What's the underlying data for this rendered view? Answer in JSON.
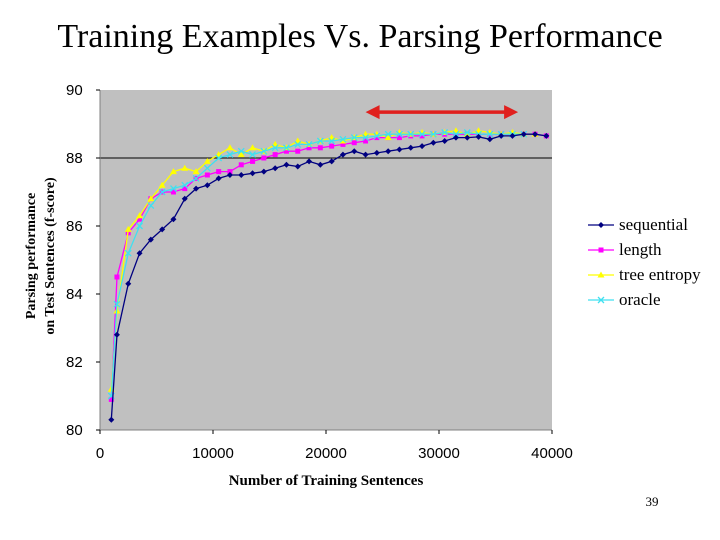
{
  "slide": {
    "title": "Training Examples Vs. Parsing Performance",
    "page_number": "39"
  },
  "colors": {
    "plot_background": "#c0c0c0",
    "gridline": "#000000",
    "arrow": "#e0201e"
  },
  "chart_data": {
    "type": "line",
    "title": "",
    "xlabel": "Number of Training Sentences",
    "ylabel_lines": [
      "Parsing performance",
      "on Test Sentences (f-score)"
    ],
    "xlim": [
      0,
      40000
    ],
    "ylim": [
      80,
      90
    ],
    "x_ticks": [
      "0",
      "10000",
      "20000",
      "30000",
      "40000"
    ],
    "y_ticks": [
      "80",
      "82",
      "84",
      "86",
      "88",
      "90"
    ],
    "gridlines_y": [
      88
    ],
    "legend_position": "right",
    "annotations": [
      {
        "type": "double-arrow",
        "x_start": 23500,
        "x_end": 37000,
        "y": 89.35
      }
    ],
    "series": [
      {
        "name": "sequential",
        "color": "#000080",
        "marker": "diamond",
        "x": [
          1000,
          1500,
          2500,
          3500,
          4500,
          5500,
          6500,
          7500,
          8500,
          9500,
          10500,
          11500,
          12500,
          13500,
          14500,
          15500,
          16500,
          17500,
          18500,
          19500,
          20500,
          21500,
          22500,
          23500,
          24500,
          25500,
          26500,
          27500,
          28500,
          29500,
          30500,
          31500,
          32500,
          33500,
          34500,
          35500,
          36500,
          37500,
          38500,
          39500
        ],
        "y": [
          80.3,
          82.8,
          84.3,
          85.2,
          85.6,
          85.9,
          86.2,
          86.8,
          87.1,
          87.2,
          87.4,
          87.5,
          87.5,
          87.55,
          87.6,
          87.7,
          87.8,
          87.75,
          87.9,
          87.8,
          87.9,
          88.1,
          88.2,
          88.1,
          88.15,
          88.2,
          88.25,
          88.3,
          88.35,
          88.45,
          88.5,
          88.6,
          88.6,
          88.62,
          88.55,
          88.65,
          88.65,
          88.7,
          88.7,
          88.65
        ]
      },
      {
        "name": "length",
        "color": "#ff00ff",
        "marker": "square",
        "x": [
          1000,
          1500,
          2500,
          3500,
          4500,
          5500,
          6500,
          7500,
          8500,
          9500,
          10500,
          11500,
          12500,
          13500,
          14500,
          15500,
          16500,
          17500,
          18500,
          19500,
          20500,
          21500,
          22500,
          23500,
          24500,
          25500,
          26500,
          27500,
          28500,
          29500,
          30500,
          31500,
          32500,
          33500,
          34500,
          35500,
          36500,
          37500,
          38500,
          39500
        ],
        "y": [
          80.9,
          84.5,
          85.8,
          86.2,
          86.8,
          87.0,
          87.0,
          87.1,
          87.4,
          87.5,
          87.6,
          87.6,
          87.8,
          87.9,
          88.0,
          88.1,
          88.2,
          88.2,
          88.3,
          88.3,
          88.35,
          88.4,
          88.45,
          88.5,
          88.6,
          88.6,
          88.6,
          88.65,
          88.65,
          88.7,
          88.7,
          88.7,
          88.7,
          88.7,
          88.7,
          88.7,
          88.7,
          88.7,
          88.7,
          88.65
        ]
      },
      {
        "name": "tree entropy",
        "color": "#ffff00",
        "marker": "triangle",
        "x": [
          1000,
          1500,
          2500,
          3500,
          4500,
          5500,
          6500,
          7500,
          8500,
          9500,
          10500,
          11500,
          12500,
          13500,
          14500,
          15500,
          16500,
          17500,
          18500,
          19500,
          20500,
          21500,
          22500,
          23500,
          24500,
          25500,
          26500,
          27500,
          28500,
          29500,
          30500,
          31500,
          32500,
          33500,
          34500,
          35500,
          36500,
          37500,
          38500
        ],
        "y": [
          81.2,
          83.5,
          85.9,
          86.3,
          86.8,
          87.2,
          87.6,
          87.7,
          87.6,
          87.9,
          88.1,
          88.3,
          88.1,
          88.3,
          88.2,
          88.4,
          88.3,
          88.5,
          88.4,
          88.5,
          88.6,
          88.5,
          88.6,
          88.7,
          88.7,
          88.6,
          88.75,
          88.7,
          88.75,
          88.7,
          88.75,
          88.8,
          88.7,
          88.8,
          88.75,
          88.7,
          88.75,
          88.7,
          88.7
        ]
      },
      {
        "name": "oracle",
        "color": "#40e0f0",
        "marker": "x",
        "x": [
          1000,
          1500,
          2500,
          3500,
          4500,
          5500,
          6500,
          7500,
          8500,
          9500,
          10500,
          11500,
          12500,
          13500,
          14500,
          15500,
          16500,
          17500,
          18500,
          19500,
          20500,
          21500,
          22500,
          23500,
          24500,
          25500,
          26500,
          27500,
          28500,
          29500,
          30500,
          31500,
          32500,
          33500,
          34500,
          35500,
          36500,
          37500
        ],
        "y": [
          81.0,
          83.7,
          85.2,
          86.0,
          86.6,
          87.0,
          87.1,
          87.2,
          87.4,
          87.7,
          88.0,
          88.1,
          88.2,
          88.1,
          88.2,
          88.3,
          88.3,
          88.4,
          88.4,
          88.5,
          88.5,
          88.55,
          88.6,
          88.6,
          88.65,
          88.7,
          88.7,
          88.7,
          88.7,
          88.7,
          88.75,
          88.7,
          88.75,
          88.7,
          88.7,
          88.7,
          88.7,
          88.7
        ]
      }
    ]
  }
}
